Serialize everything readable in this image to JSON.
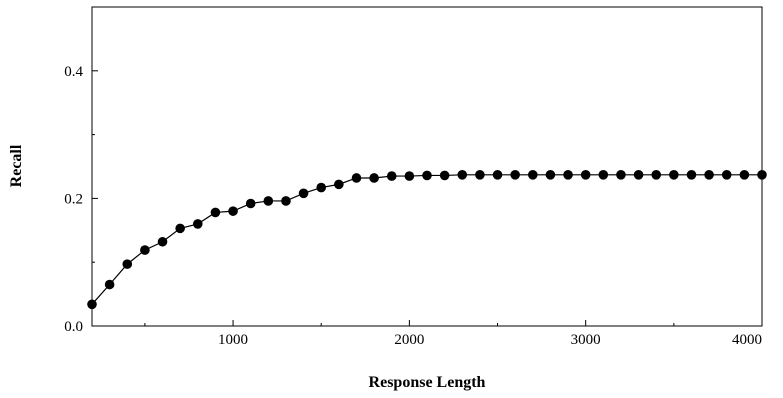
{
  "chart_data": {
    "type": "line",
    "title": "",
    "xlabel": "Response Length",
    "ylabel": "Recall",
    "xlim": [
      200,
      4000
    ],
    "ylim": [
      0,
      0.5
    ],
    "x_ticks": [
      1000,
      2000,
      3000,
      4000
    ],
    "x_tick_labels": [
      "1000",
      "2000",
      "3000",
      "4000"
    ],
    "y_ticks": [
      0.0,
      0.2,
      0.4
    ],
    "y_tick_labels": [
      "0.0",
      "0.2",
      "0.4"
    ],
    "grid": false,
    "marker": "circle",
    "color": "#000000",
    "series": [
      {
        "x": [
          200,
          300,
          400,
          500,
          600,
          700,
          800,
          900,
          1000,
          1100,
          1200,
          1300,
          1400,
          1500,
          1600,
          1700,
          1800,
          1900,
          2000,
          2100,
          2200,
          2300,
          2400,
          2500,
          2600,
          2700,
          2800,
          2900,
          3000,
          3100,
          3200,
          3300,
          3400,
          3500,
          3600,
          3700,
          3800,
          3900,
          4000
        ],
        "y": [
          0.034,
          0.065,
          0.097,
          0.119,
          0.132,
          0.153,
          0.16,
          0.178,
          0.18,
          0.192,
          0.196,
          0.196,
          0.208,
          0.217,
          0.222,
          0.232,
          0.232,
          0.235,
          0.235,
          0.236,
          0.236,
          0.237,
          0.237,
          0.237,
          0.237,
          0.237,
          0.237,
          0.237,
          0.237,
          0.237,
          0.237,
          0.237,
          0.237,
          0.237,
          0.237,
          0.237,
          0.237,
          0.237,
          0.237
        ]
      }
    ]
  }
}
